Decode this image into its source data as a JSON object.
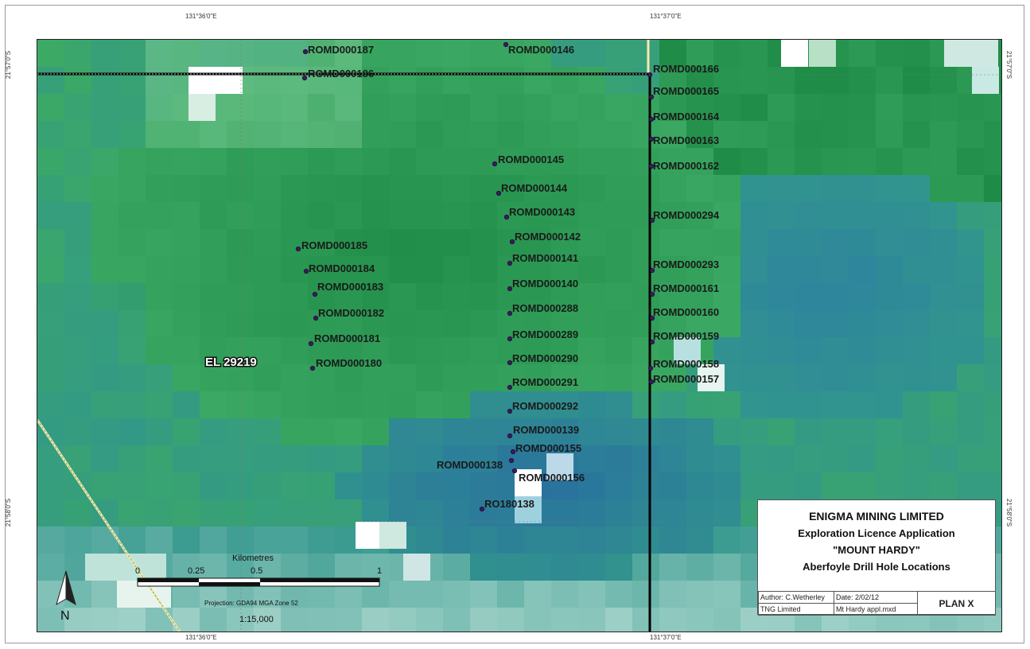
{
  "coordinates": {
    "top_left_lon": "131°36'0\"E",
    "top_right_lon": "131°37'0\"E",
    "bottom_left_lon": "131°36'0\"E",
    "bottom_right_lon": "131°37'0\"E",
    "left_upper_lat": "21°57'0\"S",
    "left_lower_lat": "21°58'0\"S",
    "right_upper_lat": "21°57'0\"S",
    "right_lower_lat": "21°58'0\"S"
  },
  "tenement_label": "EL 29219",
  "drill_holes": [
    {
      "id": "ROMD000187"
    },
    {
      "id": "ROMD000186"
    },
    {
      "id": "ROMD000146"
    },
    {
      "id": "ROMD000166"
    },
    {
      "id": "ROMD000165"
    },
    {
      "id": "ROMD000164"
    },
    {
      "id": "ROMD000163"
    },
    {
      "id": "ROMD000162"
    },
    {
      "id": "ROMD000294"
    },
    {
      "id": "ROMD000293"
    },
    {
      "id": "ROMD000161"
    },
    {
      "id": "ROMD000160"
    },
    {
      "id": "ROMD000159"
    },
    {
      "id": "ROMD000158"
    },
    {
      "id": "ROMD000157"
    },
    {
      "id": "ROMD000145"
    },
    {
      "id": "ROMD000144"
    },
    {
      "id": "ROMD000143"
    },
    {
      "id": "ROMD000142"
    },
    {
      "id": "ROMD000141"
    },
    {
      "id": "ROMD000140"
    },
    {
      "id": "ROMD000288"
    },
    {
      "id": "ROMD000289"
    },
    {
      "id": "ROMD000290"
    },
    {
      "id": "ROMD000291"
    },
    {
      "id": "ROMD000292"
    },
    {
      "id": "ROMD000139"
    },
    {
      "id": "ROMD000155"
    },
    {
      "id": "ROMD000138"
    },
    {
      "id": "ROMD000156"
    },
    {
      "id": "RO180138"
    },
    {
      "id": "ROMD000185"
    },
    {
      "id": "ROMD000184"
    },
    {
      "id": "ROMD000183"
    },
    {
      "id": "ROMD000182"
    },
    {
      "id": "ROMD000181"
    },
    {
      "id": "ROMD000180"
    }
  ],
  "scalebar": {
    "unit_label": "Kilometres",
    "ticks": [
      "0",
      "0.25",
      "0.5",
      "1"
    ],
    "projection": "Projection: GDA94 MGA Zone 52",
    "scale": "1:15,000"
  },
  "north_arrow_label": "N",
  "title_block": {
    "company": "ENIGMA MINING LIMITED",
    "line2": "Exploration Licence Application",
    "line3": "\"MOUNT HARDY\"",
    "line4": "Aberfoyle Drill Hole Locations",
    "author": "Author: C.Wetherley",
    "date": "Date: 2/02/12",
    "org": "TNG Limited",
    "file": "Mt Hardy appl.mxd",
    "plan": "PLAN X"
  },
  "colors": {
    "drill_hole_dot": "#3b1a5c",
    "label_text": "#1a1a1a",
    "boundary_line": "#000000",
    "road_line": "#f0e6a0"
  }
}
